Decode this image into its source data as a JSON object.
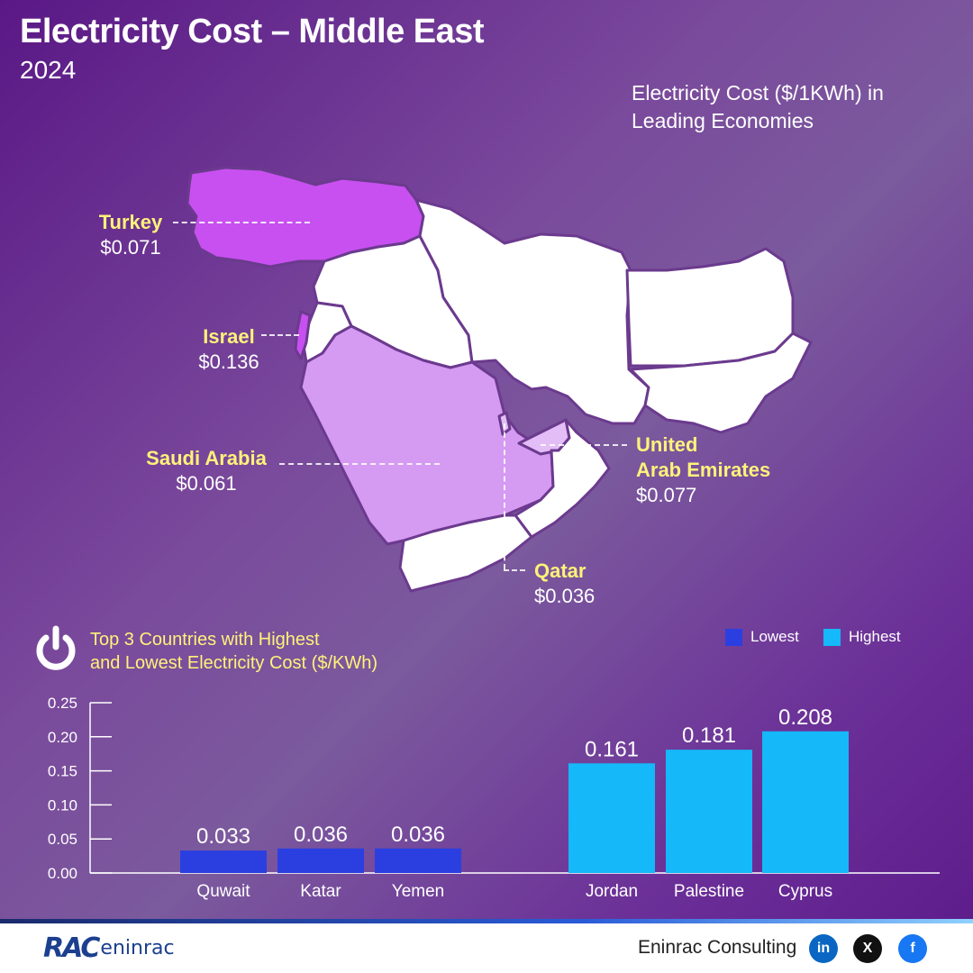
{
  "header": {
    "title": "Electricity Cost – Middle East",
    "year": "2024"
  },
  "map": {
    "caption": "Electricity Cost ($/1KWh) in Leading Economies",
    "countries": [
      {
        "name": "Turkey",
        "value": "$0.071"
      },
      {
        "name": "Israel",
        "value": "$0.136"
      },
      {
        "name": "Saudi Arabia",
        "value": "$0.061"
      },
      {
        "name_line1": "United",
        "name_line2": "Arab Emirates",
        "value": "$0.077"
      },
      {
        "name": "Qatar",
        "value": "$0.036"
      }
    ],
    "colors": {
      "highlight_dark": "#c850f0",
      "highlight_mid": "#d59af2",
      "highlight_light": "#e3bdf6",
      "land": "#ffffff"
    }
  },
  "chart_section": {
    "title_line1": "Top 3 Countries with Highest",
    "title_line2": "and Lowest Electricity Cost ($/KWh)",
    "legend": [
      {
        "label": "Lowest",
        "color": "#2b3fe0"
      },
      {
        "label": "Highest",
        "color": "#15b8f8"
      }
    ]
  },
  "chart_data": {
    "type": "bar",
    "categories": [
      "Quwait",
      "Katar",
      "Yemen",
      "Jordan",
      "Palestine",
      "Cyprus"
    ],
    "values": [
      0.033,
      0.036,
      0.036,
      0.161,
      0.181,
      0.208
    ],
    "value_labels": [
      "0.033",
      "0.036",
      "0.036",
      "0.161",
      "0.181",
      "0.208"
    ],
    "groups": [
      "Lowest",
      "Lowest",
      "Lowest",
      "Highest",
      "Highest",
      "Highest"
    ],
    "colors": {
      "Lowest": "#2b3fe0",
      "Highest": "#15b8f8"
    },
    "yticks": [
      "0.00",
      "0.05",
      "0.10",
      "0.15",
      "0.20",
      "0.25"
    ],
    "ylim": [
      0,
      0.25
    ],
    "grid": false
  },
  "footer": {
    "logo_mark": "RAC",
    "logo_text": "eninrac",
    "brand": "Eninrac Consulting",
    "social": [
      {
        "icon": "linkedin-icon",
        "glyph": "in",
        "color": "#0a66c2"
      },
      {
        "icon": "x-icon",
        "glyph": "X",
        "color": "#111111"
      },
      {
        "icon": "facebook-icon",
        "glyph": "f",
        "color": "#1877f2"
      }
    ]
  }
}
